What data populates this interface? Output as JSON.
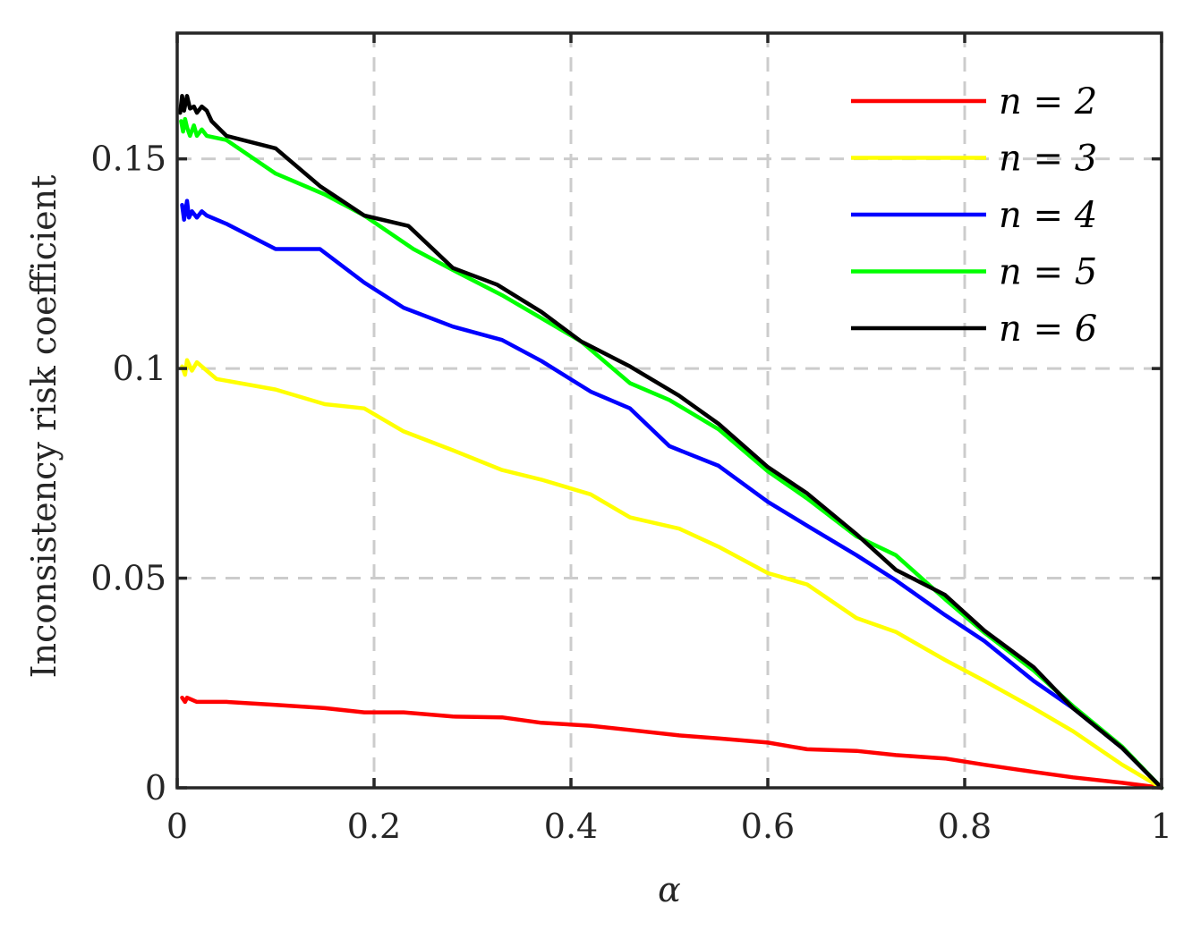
{
  "chart_data": {
    "type": "line",
    "xlabel": "α",
    "ylabel": "Inconsistency risk coefficient",
    "xlim": [
      0,
      1
    ],
    "ylim": [
      0,
      0.18
    ],
    "grid": true,
    "legend_position": "top-right",
    "xticks": [
      0,
      0.2,
      0.4,
      0.6,
      0.8,
      1
    ],
    "xtick_labels": [
      "0",
      "0.2",
      "0.4",
      "0.6",
      "0.8",
      "1"
    ],
    "yticks": [
      0,
      0.05,
      0.1,
      0.15
    ],
    "ytick_labels": [
      "0",
      "0.05",
      "0.1",
      "0.15"
    ],
    "series": [
      {
        "name": "n = 2",
        "color": "#ff0000",
        "x": [
          0.005,
          0.008,
          0.01,
          0.02,
          0.05,
          0.1,
          0.15,
          0.19,
          0.23,
          0.28,
          0.33,
          0.37,
          0.42,
          0.46,
          0.51,
          0.55,
          0.6,
          0.64,
          0.69,
          0.73,
          0.78,
          0.82,
          0.87,
          0.91,
          0.96,
          1.0
        ],
        "y": [
          0.0215,
          0.0205,
          0.0215,
          0.0205,
          0.0205,
          0.0198,
          0.019,
          0.018,
          0.018,
          0.017,
          0.0168,
          0.0155,
          0.0148,
          0.0138,
          0.0125,
          0.0118,
          0.0108,
          0.0092,
          0.0088,
          0.0078,
          0.007,
          0.0055,
          0.0038,
          0.0025,
          0.0012,
          0.0
        ]
      },
      {
        "name": "n = 3",
        "color": "#ffff00",
        "x": [
          0.005,
          0.008,
          0.01,
          0.015,
          0.02,
          0.03,
          0.04,
          0.1,
          0.15,
          0.19,
          0.23,
          0.28,
          0.33,
          0.37,
          0.42,
          0.46,
          0.51,
          0.55,
          0.6,
          0.64,
          0.69,
          0.73,
          0.78,
          0.82,
          0.87,
          0.91,
          0.96,
          1.0
        ],
        "y": [
          0.1005,
          0.0985,
          0.102,
          0.0995,
          0.1015,
          0.0995,
          0.0975,
          0.095,
          0.0915,
          0.0905,
          0.085,
          0.0805,
          0.0758,
          0.0735,
          0.07,
          0.0645,
          0.0618,
          0.0575,
          0.0512,
          0.0485,
          0.0405,
          0.0372,
          0.0305,
          0.0255,
          0.019,
          0.0135,
          0.0055,
          0.0
        ]
      },
      {
        "name": "n = 4",
        "color": "#0000ff",
        "x": [
          0.005,
          0.007,
          0.01,
          0.012,
          0.015,
          0.02,
          0.025,
          0.03,
          0.05,
          0.1,
          0.145,
          0.19,
          0.23,
          0.28,
          0.33,
          0.37,
          0.42,
          0.46,
          0.5,
          0.55,
          0.6,
          0.64,
          0.69,
          0.73,
          0.78,
          0.82,
          0.87,
          0.91,
          0.96,
          1.0
        ],
        "y": [
          0.139,
          0.1355,
          0.14,
          0.136,
          0.1375,
          0.136,
          0.1375,
          0.1365,
          0.1345,
          0.1285,
          0.1285,
          0.1205,
          0.1145,
          0.11,
          0.1068,
          0.1018,
          0.0945,
          0.0905,
          0.0815,
          0.0768,
          0.0682,
          0.0625,
          0.0555,
          0.0495,
          0.0412,
          0.035,
          0.0255,
          0.019,
          0.0095,
          0.0
        ]
      },
      {
        "name": "n = 5",
        "color": "#00ff00",
        "x": [
          0.004,
          0.006,
          0.008,
          0.01,
          0.013,
          0.017,
          0.02,
          0.025,
          0.03,
          0.05,
          0.1,
          0.15,
          0.19,
          0.24,
          0.28,
          0.33,
          0.37,
          0.41,
          0.46,
          0.5,
          0.55,
          0.6,
          0.64,
          0.69,
          0.73,
          0.78,
          0.82,
          0.87,
          0.91,
          0.96,
          1.0
        ],
        "y": [
          0.159,
          0.1565,
          0.1595,
          0.1575,
          0.1555,
          0.158,
          0.1555,
          0.157,
          0.1555,
          0.1545,
          0.1465,
          0.1415,
          0.1365,
          0.1285,
          0.1235,
          0.1175,
          0.112,
          0.1065,
          0.0965,
          0.0925,
          0.0855,
          0.0755,
          0.069,
          0.06,
          0.0555,
          0.045,
          0.037,
          0.028,
          0.0195,
          0.0098,
          0.0
        ]
      },
      {
        "name": "n = 6",
        "color": "#000000",
        "x": [
          0.003,
          0.005,
          0.007,
          0.01,
          0.013,
          0.017,
          0.02,
          0.025,
          0.03,
          0.035,
          0.05,
          0.1,
          0.145,
          0.19,
          0.235,
          0.28,
          0.325,
          0.37,
          0.41,
          0.46,
          0.51,
          0.55,
          0.6,
          0.64,
          0.69,
          0.73,
          0.78,
          0.82,
          0.87,
          0.91,
          0.96,
          1.0
        ],
        "y": [
          0.161,
          0.165,
          0.1615,
          0.165,
          0.162,
          0.1625,
          0.161,
          0.1625,
          0.1615,
          0.159,
          0.1555,
          0.1525,
          0.1435,
          0.1365,
          0.134,
          0.124,
          0.12,
          0.1135,
          0.1065,
          0.1005,
          0.0935,
          0.0868,
          0.0765,
          0.0702,
          0.0605,
          0.052,
          0.046,
          0.0375,
          0.0288,
          0.019,
          0.0095,
          0.0
        ]
      }
    ]
  }
}
